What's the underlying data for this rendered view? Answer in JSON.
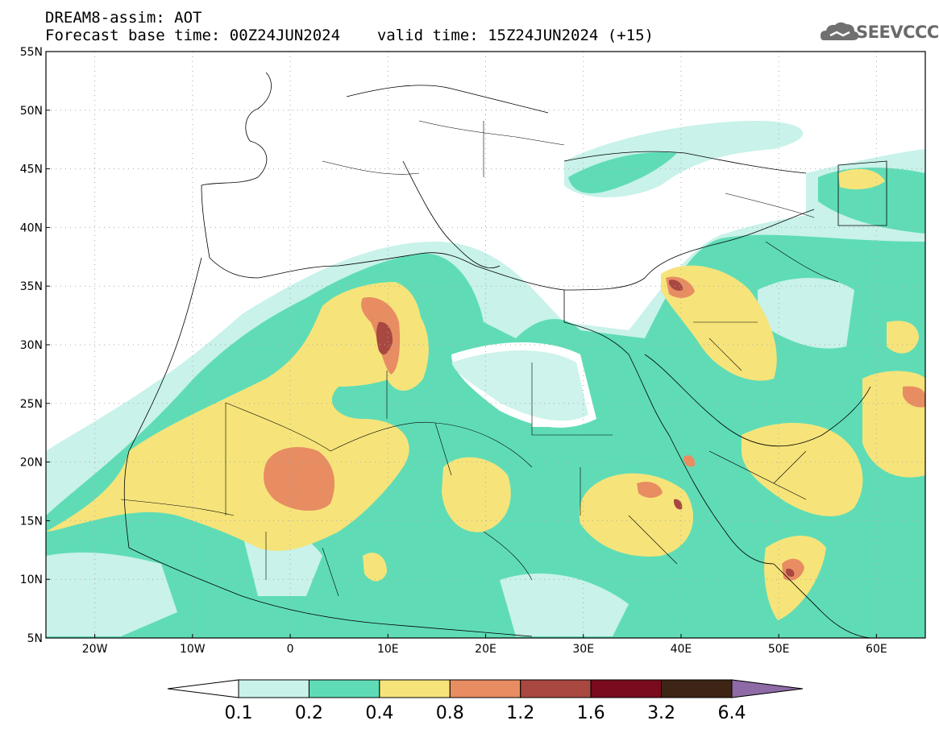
{
  "header": {
    "line1": "DREAM8-assim: AOT",
    "base_time": "Forecast base time: 00Z24JUN2024",
    "valid_time": "valid time: 15Z24JUN2024 (+15)"
  },
  "logo": {
    "text": "SEEVCCC",
    "icon": "cloud-icon"
  },
  "axes": {
    "lat_labels": [
      "55N",
      "50N",
      "45N",
      "40N",
      "35N",
      "30N",
      "25N",
      "20N",
      "15N",
      "10N",
      "5N"
    ],
    "lon_labels": [
      "20W",
      "10W",
      "0",
      "10E",
      "20E",
      "30E",
      "40E",
      "50E",
      "60E"
    ],
    "lat_range": [
      5,
      55
    ],
    "lon_range": [
      -25,
      65
    ]
  },
  "colorbar": {
    "labels": [
      "0.1",
      "0.2",
      "0.4",
      "0.8",
      "1.2",
      "1.6",
      "3.2",
      "6.4"
    ],
    "colors": [
      "#ffffff",
      "#c8f2ea",
      "#5fdcb6",
      "#f6e47a",
      "#e88c62",
      "#a84840",
      "#7a0a1e",
      "#3e2414",
      "#8e6aa6"
    ]
  },
  "map_colors": {
    "c1": "#c8f2ea",
    "c2": "#5fdcb6",
    "c3": "#f6e47a",
    "c4": "#e88c62",
    "c5": "#a84840",
    "c6": "#7a0a1e"
  }
}
